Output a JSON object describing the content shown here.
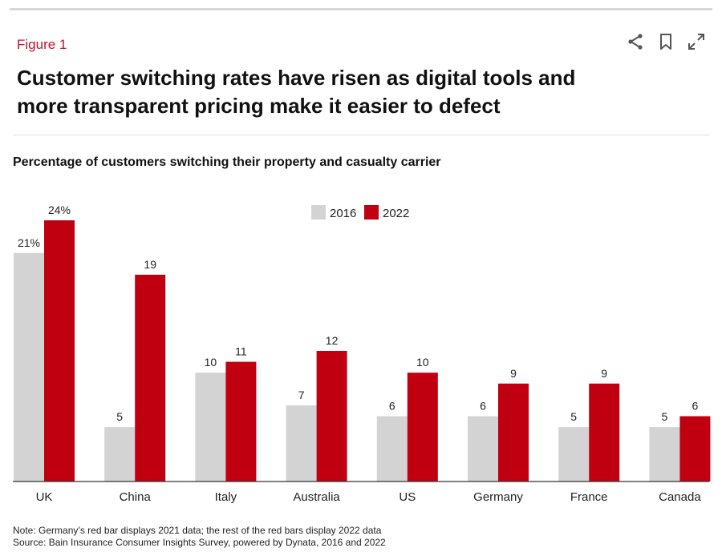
{
  "header": {
    "figure_label": "Figure 1",
    "title": "Customer switching rates have risen as digital tools and more transparent pricing make it easier to defect"
  },
  "toolbar": {
    "icons": [
      "share-icon",
      "bookmark-icon",
      "expand-icon"
    ]
  },
  "chart_data": {
    "type": "bar",
    "title": "Percentage of customers switching their property and casualty carrier",
    "categories": [
      "UK",
      "China",
      "Italy",
      "Australia",
      "US",
      "Germany",
      "France",
      "Canada"
    ],
    "series": [
      {
        "name": "2016",
        "color": "#d3d3d3",
        "values": [
          21,
          5,
          10,
          7,
          6,
          6,
          5,
          5
        ],
        "labels": [
          "21%",
          "5",
          "10",
          "7",
          "6",
          "6",
          "5",
          "5"
        ]
      },
      {
        "name": "2022",
        "color": "#c00010",
        "values": [
          24,
          19,
          11,
          12,
          10,
          9,
          9,
          6
        ],
        "labels": [
          "24%",
          "19",
          "11",
          "12",
          "10",
          "9",
          "9",
          "6"
        ]
      }
    ],
    "ylim": [
      0,
      24
    ],
    "legend": "top-center",
    "xlabel": "",
    "ylabel": ""
  },
  "footer": {
    "note": "Note: Germany’s red bar displays 2021 data; the rest of the red bars display 2022 data",
    "source": "Source: Bain Insurance Consumer Insights Survey, powered by Dynata, 2016 and 2022"
  }
}
